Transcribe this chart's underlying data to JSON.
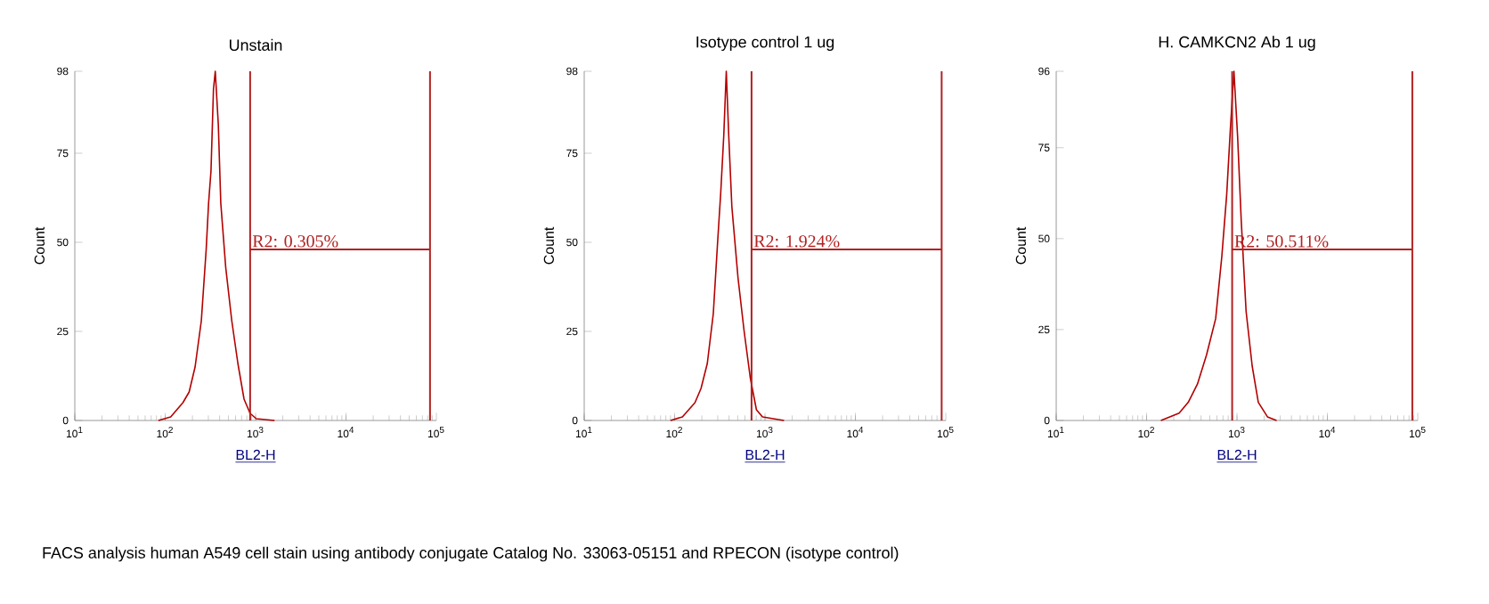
{
  "chart_data": [
    {
      "type": "line",
      "title": "Unstain",
      "xlabel": "BL2-H",
      "ylabel": "Count",
      "log": "x",
      "marker": "none",
      "xlim": [
        10,
        100000
      ],
      "ylim": [
        0,
        98
      ],
      "xticks": [
        {
          "value": 10,
          "label": "10$^{1}$"
        },
        {
          "value": 100,
          "label": "10$^{2}$"
        },
        {
          "value": 1000,
          "label": "10$^{3}$"
        },
        {
          "value": 10000,
          "label": "10$^{4}$"
        },
        {
          "value": 100000,
          "label": "10$^{5}$"
        }
      ],
      "yticks": [
        0,
        25,
        50,
        75,
        98
      ],
      "series": [
        {
          "color": "#b30000",
          "x": [
            84,
            115,
            157,
            184,
            214,
            251,
            284,
            302,
            321,
            342,
            358,
            387,
            412,
            467,
            545,
            637,
            745,
            869,
            1016,
            1620
          ],
          "values": [
            0,
            1,
            5,
            8,
            15,
            28,
            48,
            61,
            70,
            93,
            98,
            83,
            61,
            43,
            28,
            16,
            6,
            2,
            0.5,
            0
          ]
        },
        {
          "color": "#b22222",
          "x": [
            870,
            85000
          ],
          "values": [
            48,
            48
          ]
        }
      ],
      "ref_lines": [
        {
          "axis": "x",
          "value": 870,
          "color": "#b22222"
        },
        {
          "axis": "x",
          "value": 85000,
          "color": "#b22222"
        }
      ],
      "annotations": [
        {
          "text": "R2: 0.305%",
          "x": 870,
          "y": 48
        },
        "FACS analysis human A549 cell stain using antibody conjugate Catalog No. 33063-05151 and RPECON (isotype control)"
      ]
    },
    {
      "type": "line",
      "title": "Isotype control 1 ug",
      "xlabel": "BL2-H",
      "ylabel": "Count",
      "log": "x",
      "marker": "none",
      "xlim": [
        10,
        100000
      ],
      "ylim": [
        0,
        98
      ],
      "xticks": [
        {
          "value": 10,
          "label": "10$^{1}$"
        },
        {
          "value": 100,
          "label": "10$^{2}$"
        },
        {
          "value": 1000,
          "label": "10$^{3}$"
        },
        {
          "value": 10000,
          "label": "10$^{4}$"
        },
        {
          "value": 100000,
          "label": "10$^{5}$"
        }
      ],
      "yticks": [
        0,
        25,
        50,
        75,
        98
      ],
      "series": [
        {
          "color": "#b30000",
          "x": [
            90,
            122,
            168,
            196,
            230,
            268,
            299,
            324,
            350,
            373,
            397,
            430,
            503,
            588,
            687,
            804,
            940,
            1625
          ],
          "values": [
            0,
            1,
            5,
            9,
            16,
            30,
            50,
            64,
            80,
            98,
            80,
            60,
            40,
            25,
            12,
            3,
            1,
            0
          ]
        },
        {
          "color": "#b22222",
          "x": [
            710,
            90000
          ],
          "values": [
            48,
            48
          ]
        }
      ],
      "ref_lines": [
        {
          "axis": "x",
          "value": 710,
          "color": "#b22222"
        },
        {
          "axis": "x",
          "value": 90000,
          "color": "#b22222"
        }
      ],
      "annotations": [
        {
          "text": "R2: 1.924%",
          "x": 710,
          "y": 48
        }
      ]
    },
    {
      "type": "line",
      "title": "H. CAMKCN2 Ab 1 ug",
      "xlabel": "BL2-H",
      "ylabel": "Count",
      "log": "x",
      "marker": "none",
      "xlim": [
        10,
        100000
      ],
      "ylim": [
        0,
        96
      ],
      "xticks": [
        {
          "value": 10,
          "label": "10$^{1}$"
        },
        {
          "value": 100,
          "label": "10$^{2}$"
        },
        {
          "value": 1000,
          "label": "10$^{3}$"
        },
        {
          "value": 10000,
          "label": "10$^{4}$"
        },
        {
          "value": 100000,
          "label": "10$^{5}$"
        }
      ],
      "yticks": [
        0,
        25,
        50,
        75,
        96
      ],
      "series": [
        {
          "color": "#b30000",
          "x": [
            144,
            229,
            289,
            365,
            460,
            581,
            679,
            769,
            844,
            925,
            1016,
            1114,
            1261,
            1472,
            1721,
            2173,
            2742
          ],
          "values": [
            0,
            2,
            5,
            10,
            18,
            28,
            45,
            62,
            80,
            96,
            78,
            55,
            30,
            15,
            5,
            1,
            0
          ]
        },
        {
          "color": "#b22222",
          "x": [
            884,
            87000
          ],
          "values": [
            47,
            47
          ]
        }
      ],
      "ref_lines": [
        {
          "axis": "x",
          "value": 884,
          "color": "#b22222"
        },
        {
          "axis": "x",
          "value": 87000,
          "color": "#b22222"
        }
      ],
      "annotations": [
        {
          "text": "R2: 50.511%",
          "x": 884,
          "y": 47
        }
      ]
    }
  ]
}
